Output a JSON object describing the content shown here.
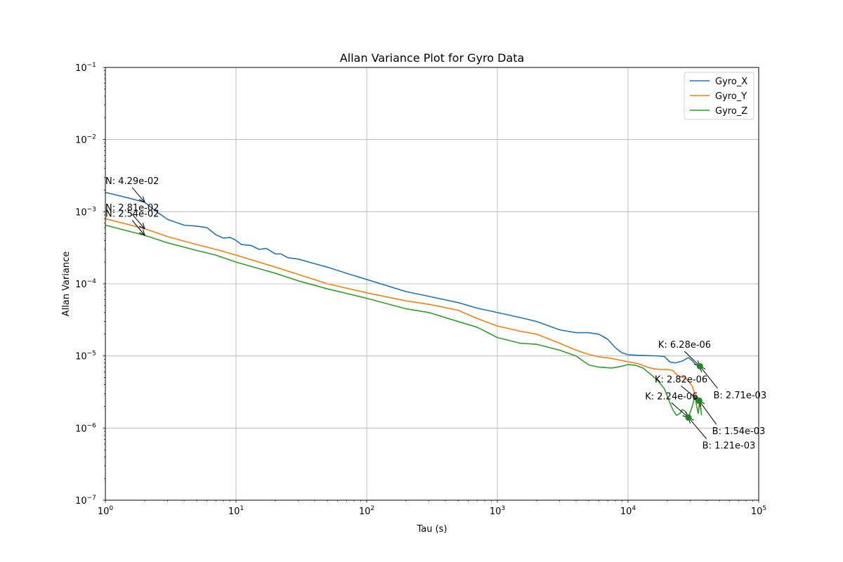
{
  "chart_data": {
    "type": "line",
    "title": "Allan Variance Plot for Gyro Data",
    "xlabel": "Tau (s)",
    "ylabel": "Allan Variance",
    "xscale": "log",
    "yscale": "log",
    "xlim": [
      1,
      100000
    ],
    "ylim": [
      1e-07,
      0.1
    ],
    "grid": true,
    "legend_position": "top-right",
    "x_ticks": [
      {
        "value": 1,
        "base": "10",
        "exp": "0"
      },
      {
        "value": 10,
        "base": "10",
        "exp": "1"
      },
      {
        "value": 100,
        "base": "10",
        "exp": "2"
      },
      {
        "value": 1000,
        "base": "10",
        "exp": "3"
      },
      {
        "value": 10000,
        "base": "10",
        "exp": "4"
      },
      {
        "value": 100000,
        "base": "10",
        "exp": "5"
      }
    ],
    "y_ticks": [
      {
        "value": 1e-07,
        "base": "10",
        "exp": "−7"
      },
      {
        "value": 1e-06,
        "base": "10",
        "exp": "−6"
      },
      {
        "value": 1e-05,
        "base": "10",
        "exp": "−5"
      },
      {
        "value": 0.0001,
        "base": "10",
        "exp": "−4"
      },
      {
        "value": 0.001,
        "base": "10",
        "exp": "−3"
      },
      {
        "value": 0.01,
        "base": "10",
        "exp": "−2"
      },
      {
        "value": 0.1,
        "base": "10",
        "exp": "−1"
      }
    ],
    "series": [
      {
        "name": "Gyro_X",
        "color": "#1f77b4",
        "points": [
          [
            1,
            0.00185
          ],
          [
            1.5,
            0.00155
          ],
          [
            2,
            0.00135
          ],
          [
            2.5,
            0.00098
          ],
          [
            3,
            0.00078
          ],
          [
            4,
            0.00065
          ],
          [
            5,
            0.00063
          ],
          [
            6,
            0.0006
          ],
          [
            7,
            0.00048
          ],
          [
            8,
            0.00043
          ],
          [
            9,
            0.00044
          ],
          [
            10,
            0.0004
          ],
          [
            11,
            0.00035
          ],
          [
            13,
            0.00034
          ],
          [
            15,
            0.0003
          ],
          [
            17,
            0.00031
          ],
          [
            20,
            0.00026
          ],
          [
            22,
            0.00026
          ],
          [
            25,
            0.00023
          ],
          [
            30,
            0.00022
          ],
          [
            40,
            0.00019
          ],
          [
            50,
            0.00017
          ],
          [
            70,
            0.00014
          ],
          [
            100,
            0.000115
          ],
          [
            200,
            7.8e-05
          ],
          [
            300,
            6.7e-05
          ],
          [
            500,
            5.5e-05
          ],
          [
            700,
            4.6e-05
          ],
          [
            1000,
            4e-05
          ],
          [
            1500,
            3.4e-05
          ],
          [
            2000,
            3e-05
          ],
          [
            3000,
            2.3e-05
          ],
          [
            4000,
            2.1e-05
          ],
          [
            5000,
            2.1e-05
          ],
          [
            6000,
            2e-05
          ],
          [
            7000,
            1.7e-05
          ],
          [
            8000,
            1.3e-05
          ],
          [
            9000,
            1.1e-05
          ],
          [
            10000,
            1.04e-05
          ],
          [
            12000,
            1.02e-05
          ],
          [
            14000,
            1.01e-05
          ],
          [
            17000,
            1e-05
          ],
          [
            19000,
            9.8e-06
          ],
          [
            21000,
            8.2e-06
          ],
          [
            23000,
            8e-06
          ],
          [
            26000,
            8.5e-06
          ],
          [
            29000,
            9.5e-06
          ],
          [
            31000,
            8.6e-06
          ],
          [
            33000,
            7.6e-06
          ],
          [
            35500,
            7.2e-06
          ]
        ]
      },
      {
        "name": "Gyro_Y",
        "color": "#ff7f0e",
        "points": [
          [
            1,
            0.0008
          ],
          [
            2,
            0.00058
          ],
          [
            3,
            0.00045
          ],
          [
            5,
            0.00035
          ],
          [
            7,
            0.0003
          ],
          [
            10,
            0.00025
          ],
          [
            20,
            0.00017
          ],
          [
            30,
            0.000135
          ],
          [
            50,
            0.0001
          ],
          [
            100,
            7.5e-05
          ],
          [
            200,
            5.8e-05
          ],
          [
            300,
            5.2e-05
          ],
          [
            500,
            4.3e-05
          ],
          [
            700,
            3.3e-05
          ],
          [
            1000,
            2.6e-05
          ],
          [
            1500,
            2.2e-05
          ],
          [
            2000,
            2e-05
          ],
          [
            3000,
            1.5e-05
          ],
          [
            4000,
            1.2e-05
          ],
          [
            5000,
            1.05e-05
          ],
          [
            6000,
            9.7e-06
          ],
          [
            7000,
            9.4e-06
          ],
          [
            8000,
            9e-06
          ],
          [
            10000,
            8.3e-06
          ],
          [
            12000,
            7.8e-06
          ],
          [
            14000,
            7e-06
          ],
          [
            16000,
            6.6e-06
          ],
          [
            18000,
            6.5e-06
          ],
          [
            20000,
            6.5e-06
          ],
          [
            22000,
            6.3e-06
          ],
          [
            24000,
            5.3e-06
          ],
          [
            27000,
            5e-06
          ],
          [
            29000,
            4.5e-06
          ],
          [
            31000,
            3.8e-06
          ],
          [
            32000,
            3.2e-06
          ],
          [
            33000,
            2.6e-06
          ],
          [
            34000,
            2.2e-06
          ],
          [
            35000,
            2.4e-06
          ],
          [
            36000,
            1.8e-06
          ]
        ]
      },
      {
        "name": "Gyro_Z",
        "color": "#2ca02c",
        "points": [
          [
            1,
            0.00065
          ],
          [
            2,
            0.00047
          ],
          [
            3,
            0.00037
          ],
          [
            5,
            0.00029
          ],
          [
            7,
            0.00025
          ],
          [
            10,
            0.0002
          ],
          [
            20,
            0.00014
          ],
          [
            30,
            0.00011
          ],
          [
            50,
            8.5e-05
          ],
          [
            100,
            6.3e-05
          ],
          [
            200,
            4.5e-05
          ],
          [
            300,
            4e-05
          ],
          [
            500,
            3e-05
          ],
          [
            700,
            2.5e-05
          ],
          [
            1000,
            1.8e-05
          ],
          [
            1500,
            1.5e-05
          ],
          [
            2000,
            1.45e-05
          ],
          [
            3000,
            1.2e-05
          ],
          [
            4000,
            1e-05
          ],
          [
            5000,
            7.5e-06
          ],
          [
            6000,
            7e-06
          ],
          [
            7500,
            6.8e-06
          ],
          [
            9000,
            7.2e-06
          ],
          [
            10000,
            7.6e-06
          ],
          [
            11500,
            7.4e-06
          ],
          [
            13000,
            6.8e-06
          ],
          [
            15000,
            5.5e-06
          ],
          [
            17000,
            4.5e-06
          ],
          [
            19000,
            3.5e-06
          ],
          [
            21000,
            2.2e-06
          ],
          [
            22000,
            1.8e-06
          ],
          [
            23500,
            1.5e-06
          ],
          [
            25000,
            1.6e-06
          ],
          [
            26000,
            1.8e-06
          ],
          [
            27500,
            1.7e-06
          ],
          [
            29000,
            1.4e-06
          ],
          [
            31000,
            2e-06
          ],
          [
            32500,
            2.8e-06
          ],
          [
            33500,
            2e-06
          ],
          [
            34500,
            1.6e-06
          ],
          [
            35500,
            2.5e-06
          ],
          [
            36500,
            1.5e-06
          ]
        ]
      }
    ],
    "annotations": [
      {
        "id": "n-x",
        "label": "N: 4.29e-02",
        "point": [
          2,
          0.00135
        ],
        "text_at": [
          1,
          0.0027
        ]
      },
      {
        "id": "n-y",
        "label": "N: 2.81e-02",
        "point": [
          2,
          0.00058
        ],
        "text_at": [
          1,
          0.00115
        ]
      },
      {
        "id": "n-z",
        "label": "N: 2.54e-02",
        "point": [
          2,
          0.00047
        ],
        "text_at": [
          1,
          0.00095
        ]
      },
      {
        "id": "k-x",
        "label": "K: 6.28e-06",
        "point": [
          35500,
          7.2e-06
        ],
        "text_at": [
          17000,
          1.45e-05
        ]
      },
      {
        "id": "k-y",
        "label": "K: 2.82e-06",
        "point": [
          35000,
          2.4e-06
        ],
        "text_at": [
          16000,
          4.8e-06
        ]
      },
      {
        "id": "k-z",
        "label": "K: 2.24e-06",
        "point": [
          29000,
          1.4e-06
        ],
        "text_at": [
          13500,
          2.8e-06
        ]
      },
      {
        "id": "b-x",
        "label": "B: 2.71e-03",
        "point": [
          35500,
          7.2e-06
        ],
        "text_at": [
          45000,
          2.9e-06
        ]
      },
      {
        "id": "b-y",
        "label": "B: 1.54e-03",
        "point": [
          35000,
          2.4e-06
        ],
        "text_at": [
          44000,
          9.2e-07
        ]
      },
      {
        "id": "b-z",
        "label": "B: 1.21e-03",
        "point": [
          29000,
          1.4e-06
        ],
        "text_at": [
          37000,
          5.8e-07
        ]
      }
    ],
    "markers": [
      {
        "point": [
          35500,
          7.2e-06
        ],
        "color": "#1a8a1a"
      },
      {
        "point": [
          35000,
          2.4e-06
        ],
        "color": "#1a8a1a"
      },
      {
        "point": [
          29000,
          1.4e-06
        ],
        "color": "#1a8a1a"
      }
    ]
  }
}
